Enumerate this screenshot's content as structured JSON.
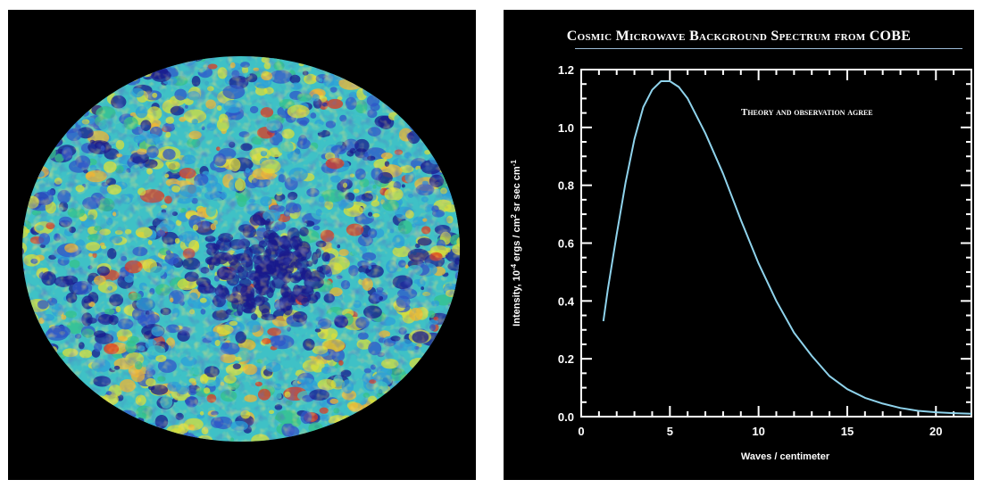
{
  "sky_map": {
    "colors": [
      "#1a1a8c",
      "#2f55c8",
      "#2e9fd8",
      "#3fc1c6",
      "#36c18a",
      "#d8dd3a",
      "#f3b431",
      "#e0381f"
    ]
  },
  "chart_data": {
    "type": "line",
    "title": "Cosmic Microwave Background Spectrum from COBE",
    "annotation": "Theory and observation agree",
    "xlabel": "Waves / centimeter",
    "ylabel_parts": [
      "Intensity, 10",
      "-4",
      " ergs / cm",
      "2",
      " sr sec cm",
      "-1"
    ],
    "xlim": [
      0,
      22
    ],
    "ylim": [
      0,
      1.2
    ],
    "x_ticks": [
      "0",
      "5",
      "10",
      "15",
      "20"
    ],
    "x_tick_values": [
      0,
      5,
      10,
      15,
      20
    ],
    "y_ticks": [
      "0.0",
      "0.2",
      "0.4",
      "0.6",
      "0.8",
      "1.0",
      "1.2"
    ],
    "y_tick_values": [
      0,
      0.2,
      0.4,
      0.6,
      0.8,
      1.0,
      1.2
    ],
    "grid": false,
    "series": [
      {
        "color": "#8fd3ec",
        "x": [
          1.25,
          1.5,
          2,
          2.5,
          3,
          3.5,
          4,
          4.5,
          5,
          5.5,
          6,
          7,
          8,
          9,
          10,
          11,
          12,
          13,
          14,
          15,
          16,
          17,
          18,
          19,
          20,
          21,
          22
        ],
        "y": [
          0.33,
          0.44,
          0.63,
          0.81,
          0.96,
          1.07,
          1.13,
          1.16,
          1.16,
          1.14,
          1.1,
          0.98,
          0.84,
          0.68,
          0.53,
          0.4,
          0.29,
          0.21,
          0.14,
          0.095,
          0.065,
          0.045,
          0.03,
          0.02,
          0.015,
          0.012,
          0.01
        ]
      }
    ]
  }
}
